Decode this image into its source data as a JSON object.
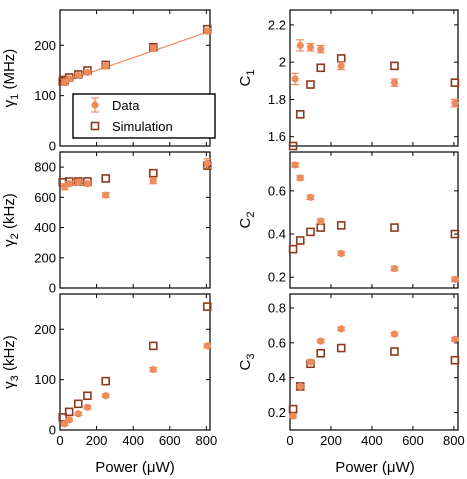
{
  "colors": {
    "data": "#ED8B5B",
    "simulation": "#8B3A1E",
    "axis": "#000000"
  },
  "legend": {
    "data_label": "Data",
    "simulation_label": "Simulation"
  },
  "chart_data": [
    {
      "type": "scatter",
      "ylabel_main": "γ",
      "ylabel_sub": "1",
      "ylabel_unit": " (MHz)",
      "xlabel": "",
      "xlim": [
        0,
        820
      ],
      "ylim": [
        0,
        270
      ],
      "xticks": [
        0,
        200,
        400,
        600,
        800
      ],
      "xticklabels": [
        "",
        "",
        "",
        "",
        ""
      ],
      "yticks": [
        0,
        100,
        200
      ],
      "yticklabels": [
        "0",
        "100",
        "200"
      ],
      "has_fit_line": true,
      "fit_line": {
        "x": [
          0,
          820
        ],
        "y": [
          125,
          228
        ]
      },
      "legend": true,
      "series": [
        {
          "name": "Data",
          "marker": "circle-errorbar",
          "x": [
            25,
            50,
            100,
            150,
            250,
            510,
            805
          ],
          "y": [
            127,
            133,
            140,
            146,
            159,
            194,
            228
          ],
          "err": [
            6,
            4,
            4,
            4,
            4,
            6,
            5
          ]
        },
        {
          "name": "Simulation",
          "marker": "open-square",
          "x": [
            15,
            25,
            50,
            100,
            150,
            250,
            510,
            805
          ],
          "y": [
            128,
            131,
            136,
            142,
            150,
            161,
            196,
            232
          ]
        }
      ]
    },
    {
      "type": "scatter",
      "ylabel_main": "C",
      "ylabel_sub": "1",
      "ylabel_unit": "",
      "xlabel": "",
      "xlim": [
        0,
        820
      ],
      "ylim": [
        1.55,
        2.28
      ],
      "xticks": [
        0,
        200,
        400,
        600,
        800
      ],
      "xticklabels": [
        "",
        "",
        "",
        "",
        ""
      ],
      "yticks": [
        1.6,
        1.8,
        2.0,
        2.2
      ],
      "yticklabels": [
        "1.6",
        "1.8",
        "2",
        "2.2"
      ],
      "legend": false,
      "series": [
        {
          "name": "Data",
          "marker": "circle-errorbar",
          "x": [
            25,
            50,
            100,
            150,
            250,
            510,
            805
          ],
          "y": [
            1.91,
            2.09,
            2.08,
            2.07,
            1.98,
            1.89,
            1.78
          ],
          "err": [
            0.03,
            0.03,
            0.02,
            0.02,
            0.02,
            0.02,
            0.02
          ]
        },
        {
          "name": "Simulation",
          "marker": "open-square",
          "x": [
            15,
            50,
            100,
            150,
            250,
            510,
            805
          ],
          "y": [
            1.55,
            1.72,
            1.88,
            1.97,
            2.02,
            1.98,
            1.89
          ]
        }
      ]
    },
    {
      "type": "scatter",
      "ylabel_main": "γ",
      "ylabel_sub": "2",
      "ylabel_unit": " (kHz)",
      "xlabel": "",
      "xlim": [
        0,
        820
      ],
      "ylim": [
        0,
        900
      ],
      "xticks": [
        0,
        200,
        400,
        600,
        800
      ],
      "xticklabels": [
        "",
        "",
        "",
        "",
        ""
      ],
      "yticks": [
        0,
        200,
        400,
        600,
        800
      ],
      "yticklabels": [
        "0",
        "200",
        "400",
        "600",
        "800"
      ],
      "legend": false,
      "series": [
        {
          "name": "Data",
          "marker": "circle-errorbar",
          "x": [
            25,
            50,
            100,
            150,
            250,
            510,
            805
          ],
          "y": [
            670,
            690,
            700,
            690,
            615,
            710,
            825
          ],
          "err": [
            20,
            15,
            15,
            15,
            15,
            20,
            30
          ]
        },
        {
          "name": "Simulation",
          "marker": "open-square",
          "x": [
            15,
            50,
            100,
            150,
            250,
            510,
            805
          ],
          "y": [
            700,
            705,
            705,
            705,
            725,
            760,
            810
          ]
        }
      ]
    },
    {
      "type": "scatter",
      "ylabel_main": "C",
      "ylabel_sub": "2",
      "ylabel_unit": "",
      "xlabel": "",
      "xlim": [
        0,
        820
      ],
      "ylim": [
        0.15,
        0.78
      ],
      "xticks": [
        0,
        200,
        400,
        600,
        800
      ],
      "xticklabels": [
        "",
        "",
        "",
        "",
        ""
      ],
      "yticks": [
        0.2,
        0.4,
        0.6
      ],
      "yticklabels": [
        "0.2",
        "0.4",
        "0.6"
      ],
      "legend": false,
      "series": [
        {
          "name": "Data",
          "marker": "circle-errorbar",
          "x": [
            25,
            50,
            100,
            150,
            250,
            510,
            805
          ],
          "y": [
            0.72,
            0.66,
            0.57,
            0.46,
            0.31,
            0.24,
            0.19
          ],
          "err": [
            0.01,
            0.01,
            0.01,
            0.01,
            0.01,
            0.01,
            0.01
          ]
        },
        {
          "name": "Simulation",
          "marker": "open-square",
          "x": [
            15,
            50,
            100,
            150,
            250,
            510,
            805
          ],
          "y": [
            0.33,
            0.37,
            0.41,
            0.43,
            0.44,
            0.43,
            0.4
          ]
        }
      ]
    },
    {
      "type": "scatter",
      "ylabel_main": "γ",
      "ylabel_sub": "3",
      "ylabel_unit": " (kHz)",
      "xlabel": "Power (μW)",
      "xlim": [
        0,
        820
      ],
      "ylim": [
        0,
        270
      ],
      "xticks": [
        0,
        200,
        400,
        600,
        800
      ],
      "xticklabels": [
        "0",
        "200",
        "400",
        "600",
        "800"
      ],
      "yticks": [
        0,
        100,
        200
      ],
      "yticklabels": [
        "0",
        "100",
        "200"
      ],
      "legend": false,
      "series": [
        {
          "name": "Data",
          "marker": "circle-errorbar",
          "x": [
            25,
            50,
            100,
            150,
            250,
            510,
            805
          ],
          "y": [
            12,
            20,
            32,
            45,
            68,
            120,
            167
          ],
          "err": [
            3,
            3,
            3,
            3,
            3,
            4,
            4
          ]
        },
        {
          "name": "Simulation",
          "marker": "open-square",
          "x": [
            15,
            50,
            100,
            150,
            250,
            510,
            805
          ],
          "y": [
            25,
            36,
            52,
            68,
            97,
            167,
            245
          ]
        }
      ]
    },
    {
      "type": "scatter",
      "ylabel_main": "C",
      "ylabel_sub": "3",
      "ylabel_unit": "",
      "xlabel": "Power (μW)",
      "xlim": [
        0,
        820
      ],
      "ylim": [
        0.1,
        0.88
      ],
      "xticks": [
        0,
        200,
        400,
        600,
        800
      ],
      "xticklabels": [
        "0",
        "200",
        "400",
        "600",
        "800"
      ],
      "yticks": [
        0.2,
        0.4,
        0.6,
        0.8
      ],
      "yticklabels": [
        "0.2",
        "0.4",
        "0.6",
        "0.8"
      ],
      "legend": false,
      "series": [
        {
          "name": "Data",
          "marker": "circle-errorbar",
          "x": [
            15,
            50,
            100,
            150,
            250,
            510,
            805
          ],
          "y": [
            0.18,
            0.35,
            0.49,
            0.61,
            0.68,
            0.65,
            0.62
          ],
          "err": [
            0.01,
            0.01,
            0.01,
            0.01,
            0.01,
            0.01,
            0.01
          ]
        },
        {
          "name": "Simulation",
          "marker": "open-square",
          "x": [
            15,
            50,
            100,
            150,
            250,
            510,
            805
          ],
          "y": [
            0.22,
            0.35,
            0.48,
            0.54,
            0.57,
            0.55,
            0.5
          ]
        }
      ]
    }
  ]
}
